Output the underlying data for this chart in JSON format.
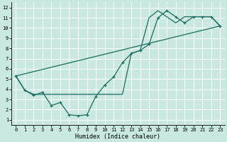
{
  "xlabel": "Humidex (Indice chaleur)",
  "ylabel": "",
  "xlim": [
    -0.5,
    23.5
  ],
  "ylim": [
    0.5,
    12.5
  ],
  "xticks": [
    0,
    1,
    2,
    3,
    4,
    5,
    6,
    7,
    8,
    9,
    10,
    11,
    12,
    13,
    14,
    15,
    16,
    17,
    18,
    19,
    20,
    21,
    22,
    23
  ],
  "yticks": [
    1,
    2,
    3,
    4,
    5,
    6,
    7,
    8,
    9,
    10,
    11,
    12
  ],
  "bg_color": "#c8e8e0",
  "grid_color": "#ffffff",
  "line_color": "#1a6b60",
  "line1_x": [
    0,
    1,
    2,
    3,
    4,
    5,
    6,
    7,
    8,
    9,
    10,
    11,
    12,
    13,
    14,
    15,
    16,
    17,
    18,
    19,
    20,
    21,
    22,
    23
  ],
  "line1_y": [
    5.3,
    3.9,
    3.4,
    3.7,
    2.4,
    2.7,
    1.5,
    1.4,
    1.5,
    3.3,
    4.4,
    5.2,
    6.6,
    7.5,
    7.8,
    8.4,
    11.0,
    11.7,
    11.1,
    10.5,
    11.1,
    11.1,
    11.1,
    10.2
  ],
  "line2_x": [
    0,
    1,
    2,
    3,
    9,
    10,
    11,
    12,
    13,
    14,
    15,
    16,
    17,
    18,
    19,
    20,
    21,
    22,
    23
  ],
  "line2_y": [
    5.3,
    3.9,
    3.5,
    3.5,
    3.5,
    3.5,
    3.5,
    3.5,
    7.5,
    7.8,
    11.0,
    11.7,
    11.1,
    10.5,
    11.1,
    11.1,
    11.1,
    11.1,
    10.2
  ],
  "line3_x": [
    0,
    23
  ],
  "line3_y": [
    5.3,
    10.2
  ]
}
